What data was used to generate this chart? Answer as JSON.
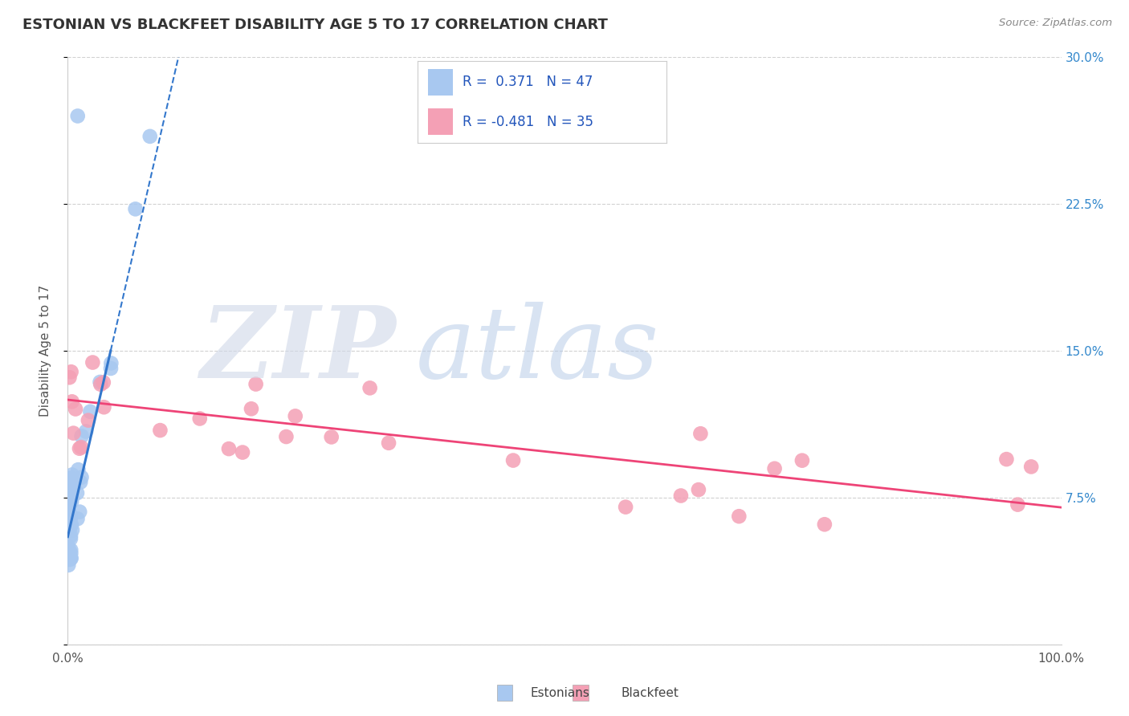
{
  "title": "ESTONIAN VS BLACKFEET DISABILITY AGE 5 TO 17 CORRELATION CHART",
  "source": "Source: ZipAtlas.com",
  "ylabel": "Disability Age 5 to 17",
  "color_estonian": "#a8c8f0",
  "color_blackfeet": "#f4a0b5",
  "trendline_estonian": "#3377cc",
  "trendline_blackfeet": "#ee4477",
  "legend_color": "#2255bb",
  "ytick_color": "#3388cc",
  "grid_color": "#cccccc",
  "spine_color": "#cccccc",
  "title_color": "#333333",
  "source_color": "#888888",
  "label_color": "#555555",
  "est_slope": 2.2,
  "est_intercept": 0.055,
  "blk_slope": -0.055,
  "blk_intercept": 0.125
}
